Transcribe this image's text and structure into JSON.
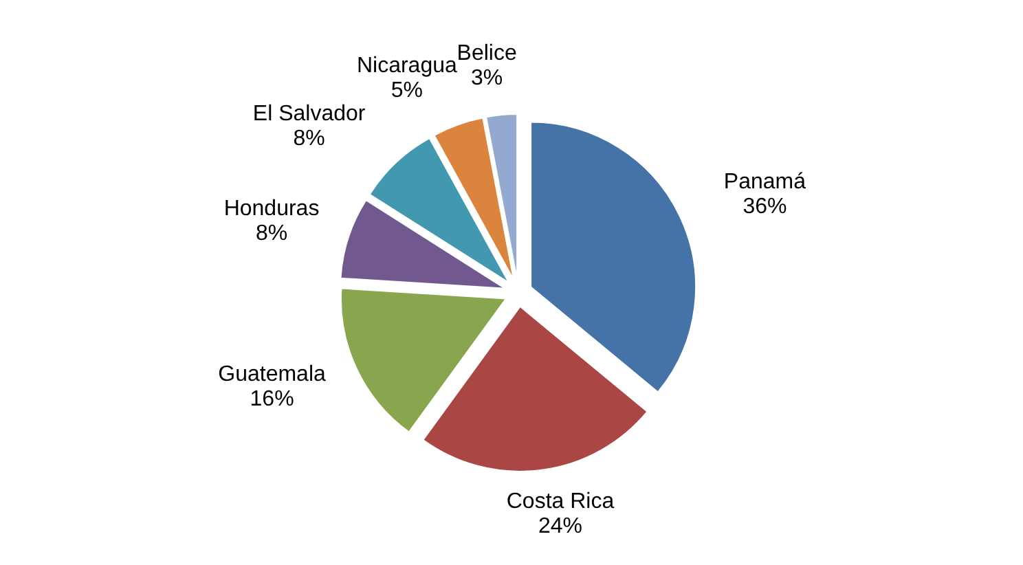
{
  "chart_data": {
    "type": "pie",
    "categories": [
      "Panamá",
      "Costa Rica",
      "Guatemala",
      "Honduras",
      "El Salvador",
      "Nicaragua",
      "Belice"
    ],
    "values": [
      36,
      24,
      16,
      8,
      8,
      5,
      3
    ],
    "colors": [
      "#4572a7",
      "#aa4643",
      "#89a54e",
      "#71588f",
      "#4198af",
      "#db843d",
      "#93a9cf"
    ],
    "value_labels": [
      "36%",
      "24%",
      "16%",
      "8%",
      "8%",
      "5%",
      "3%"
    ],
    "legend": false
  }
}
